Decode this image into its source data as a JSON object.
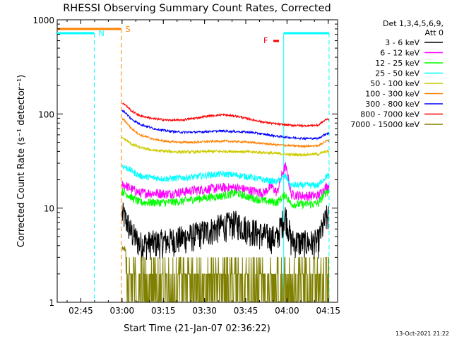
{
  "chart_data": {
    "type": "line",
    "title": "RHESSI Observing Summary Count Rates, Corrected",
    "xlabel": "Start Time (21-Jan-07 02:36:22)",
    "ylabel": "Corrected Count Rate (s⁻¹ detector⁻¹)",
    "yscale": "log",
    "ylim": [
      1,
      1000
    ],
    "xlim_minutes_from_start": [
      0,
      102
    ],
    "x_ticks": [
      "02:45",
      "03:00",
      "03:15",
      "03:30",
      "03:45",
      "04:00",
      "04:15"
    ],
    "x_tick_minutes": [
      8.6,
      23.6,
      38.6,
      53.6,
      68.6,
      83.6,
      98.6
    ],
    "y_ticks": [
      "1",
      "10",
      "100",
      "1000"
    ],
    "y_tick_values": [
      1,
      10,
      100,
      1000
    ],
    "legend_title_lines": [
      "Det 1,3,4,5,6,9,",
      "Att 0"
    ],
    "legend_position": "right",
    "data_minutes_range": [
      23.6,
      98.9
    ],
    "series": [
      {
        "name": "3 - 6 keV",
        "color": "#000000",
        "x": [
          24,
          27,
          30,
          35,
          40,
          45,
          50,
          55,
          60,
          65,
          70,
          75,
          80,
          83,
          85,
          90,
          95,
          98
        ],
        "y": [
          8.5,
          5.5,
          4.2,
          4.3,
          4.5,
          4.8,
          5.2,
          5.8,
          6.5,
          7.0,
          6.0,
          5.2,
          4.8,
          8.5,
          4.5,
          4.3,
          4.4,
          8.0
        ]
      },
      {
        "name": "6 - 12 keV",
        "color": "#ff00ff",
        "x": [
          24,
          27,
          30,
          35,
          40,
          45,
          50,
          55,
          60,
          65,
          70,
          75,
          78,
          80,
          83,
          85,
          90,
          95,
          98
        ],
        "y": [
          18,
          16,
          14.5,
          14.5,
          14.2,
          14.8,
          15.5,
          16,
          16.5,
          16.5,
          15.5,
          14.5,
          17,
          14.5,
          28,
          14,
          13.5,
          13.6,
          17
        ]
      },
      {
        "name": "12 - 25 keV",
        "color": "#00ff00",
        "x": [
          24,
          27,
          30,
          35,
          40,
          45,
          50,
          55,
          60,
          65,
          70,
          75,
          80,
          83,
          85,
          90,
          95,
          98
        ],
        "y": [
          15,
          13,
          11.5,
          11.5,
          11.5,
          11.8,
          12.5,
          13,
          13.5,
          14.5,
          13,
          12,
          11.5,
          14,
          11,
          11,
          11.2,
          15
        ]
      },
      {
        "name": "25 - 50 keV",
        "color": "#00ffff",
        "x": [
          24,
          27,
          30,
          35,
          40,
          45,
          50,
          55,
          60,
          65,
          70,
          75,
          80,
          83,
          85,
          90,
          95,
          98
        ],
        "y": [
          28,
          25,
          22,
          21,
          20.5,
          21,
          21.5,
          22.5,
          23,
          22.5,
          21.5,
          20,
          19,
          22,
          17.5,
          17.5,
          17.5,
          22
        ]
      },
      {
        "name": "50 - 100 keV",
        "color": "#cccc00",
        "x": [
          24,
          27,
          30,
          35,
          40,
          45,
          50,
          55,
          60,
          65,
          70,
          75,
          80,
          85,
          90,
          95,
          98
        ],
        "y": [
          55,
          48,
          44,
          41,
          40,
          39.5,
          39.5,
          40,
          40,
          40,
          39.5,
          39,
          38,
          37,
          37,
          37.5,
          40
        ]
      },
      {
        "name": "100 - 300 keV",
        "color": "#ff8000",
        "x": [
          24,
          27,
          30,
          35,
          40,
          45,
          50,
          55,
          60,
          65,
          70,
          75,
          80,
          85,
          90,
          95,
          98
        ],
        "y": [
          88,
          70,
          60,
          54,
          51,
          50,
          50,
          51,
          51.5,
          51,
          50,
          48.5,
          47,
          46,
          45.5,
          46,
          52
        ]
      },
      {
        "name": "300 - 800 keV",
        "color": "#0000ff",
        "x": [
          24,
          27,
          30,
          35,
          40,
          45,
          50,
          55,
          60,
          65,
          70,
          75,
          80,
          85,
          90,
          95,
          98
        ],
        "y": [
          108,
          88,
          78,
          70,
          66,
          64,
          64,
          65,
          66,
          65,
          64,
          61,
          58,
          56,
          55,
          55,
          62
        ]
      },
      {
        "name": "800 - 7000 keV",
        "color": "#ff0000",
        "x": [
          24,
          27,
          30,
          35,
          40,
          45,
          50,
          55,
          60,
          65,
          70,
          75,
          80,
          85,
          90,
          95,
          98
        ],
        "y": [
          130,
          108,
          96,
          89,
          86,
          86,
          90,
          95,
          98,
          95,
          88,
          82,
          78,
          76,
          75,
          76,
          88
        ]
      },
      {
        "name": "7000 - 15000 keV",
        "color": "#808000",
        "x": [
          24,
          27,
          30,
          35,
          40,
          45,
          50,
          55,
          60,
          65,
          70,
          75,
          80,
          85,
          90,
          95,
          98
        ],
        "y": [
          3.5,
          2.0,
          2.0,
          2.0,
          2.0,
          2.0,
          2.0,
          2.0,
          2.5,
          2.5,
          2.0,
          2.0,
          2.5,
          2.0,
          2.0,
          2.0,
          2.0
        ]
      }
    ],
    "annotations": [
      {
        "label": "N",
        "color": "#00ffff",
        "kind": "night"
      },
      {
        "label": "S",
        "color": "#ff8000",
        "kind": "saa"
      },
      {
        "label": "F",
        "color": "#ff0000",
        "kind": "flare"
      }
    ],
    "footer_date": "13-Oct-2021 21:22"
  }
}
